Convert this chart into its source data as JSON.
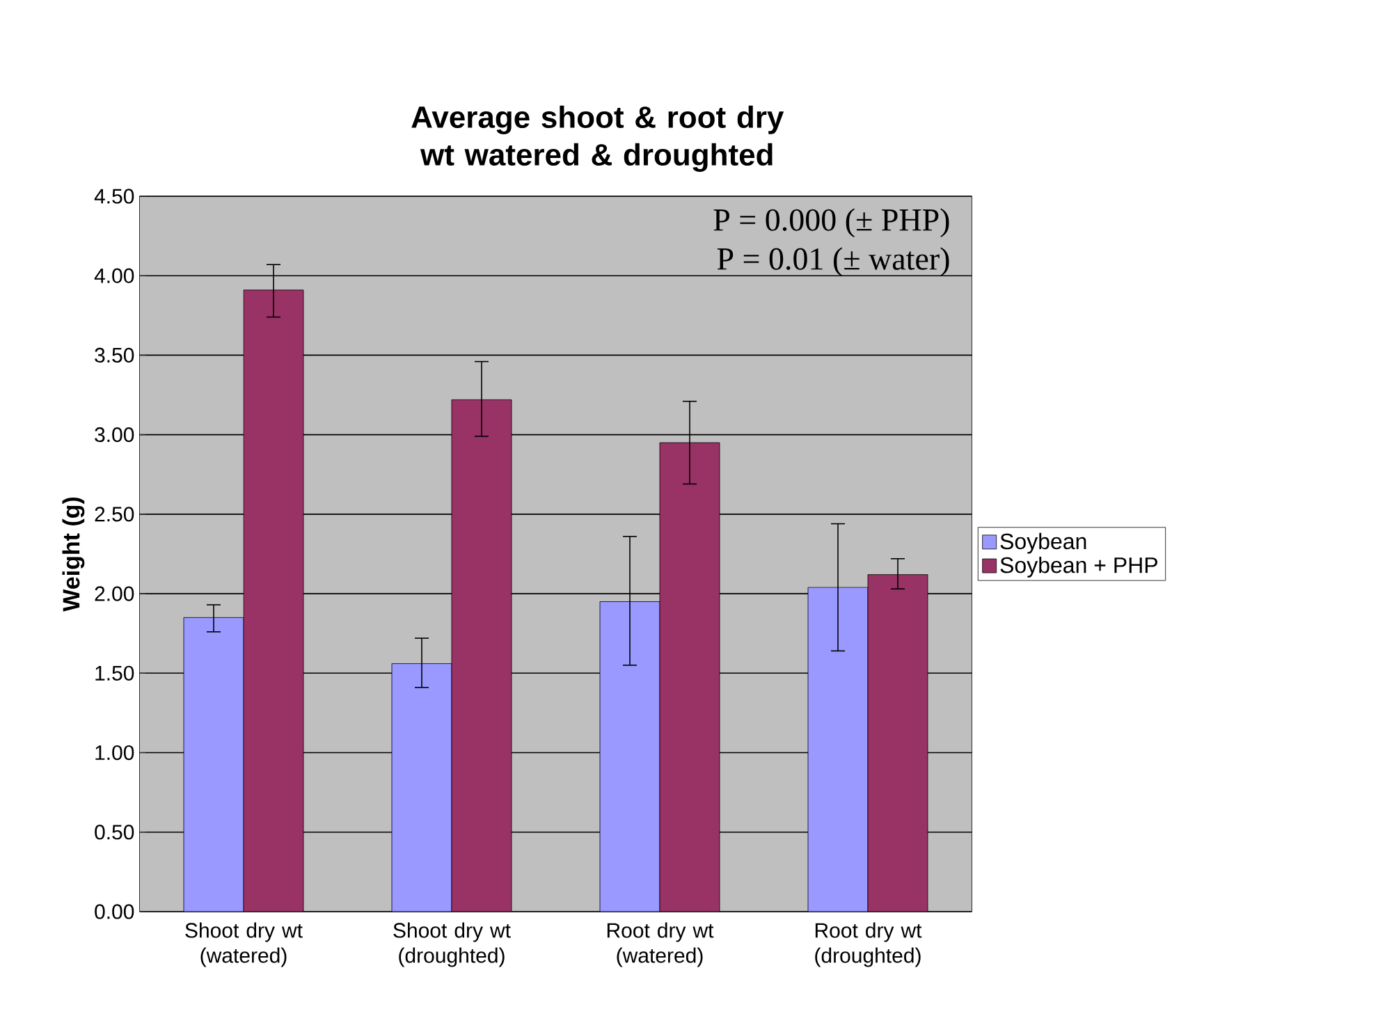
{
  "chart_data": {
    "type": "bar",
    "title": "Average shoot & root dry wt watered & droughted",
    "ylabel": "Weight (g)",
    "categories": [
      "Shoot dry wt (watered)",
      "Shoot dry wt (droughted)",
      "Root dry wt (watered)",
      "Root dry wt (droughted)"
    ],
    "series": [
      {
        "name": "Soybean",
        "color": "#9999ff",
        "values": [
          1.85,
          1.56,
          1.95,
          2.04
        ],
        "errors": [
          [
            1.76,
            1.93
          ],
          [
            1.41,
            1.72
          ],
          [
            1.55,
            2.36
          ],
          [
            1.64,
            2.44
          ]
        ]
      },
      {
        "name": "Soybean + PHP",
        "color": "#993366",
        "values": [
          3.91,
          3.22,
          2.95,
          2.12
        ],
        "errors": [
          [
            3.74,
            4.07
          ],
          [
            2.99,
            3.46
          ],
          [
            2.69,
            3.21
          ],
          [
            2.03,
            2.22
          ]
        ]
      }
    ],
    "ylim": [
      0,
      4.5
    ],
    "yticks": [
      {
        "value": 0,
        "label": "0.00"
      },
      {
        "value": 0.5,
        "label": "0.50"
      },
      {
        "value": 1,
        "label": "1.00"
      },
      {
        "value": 1.5,
        "label": "1.50"
      },
      {
        "value": 2,
        "label": "2.00"
      },
      {
        "value": 2.5,
        "label": "2.50"
      },
      {
        "value": 3,
        "label": "3.00"
      },
      {
        "value": 3.5,
        "label": "3.50"
      },
      {
        "value": 4,
        "label": "4.00"
      },
      {
        "value": 4.5,
        "label": "4.50"
      }
    ],
    "grid": "y",
    "legend": "right",
    "annotations": [
      "P = 0.000 (± PHP)",
      "P = 0.01 (± water)"
    ]
  }
}
